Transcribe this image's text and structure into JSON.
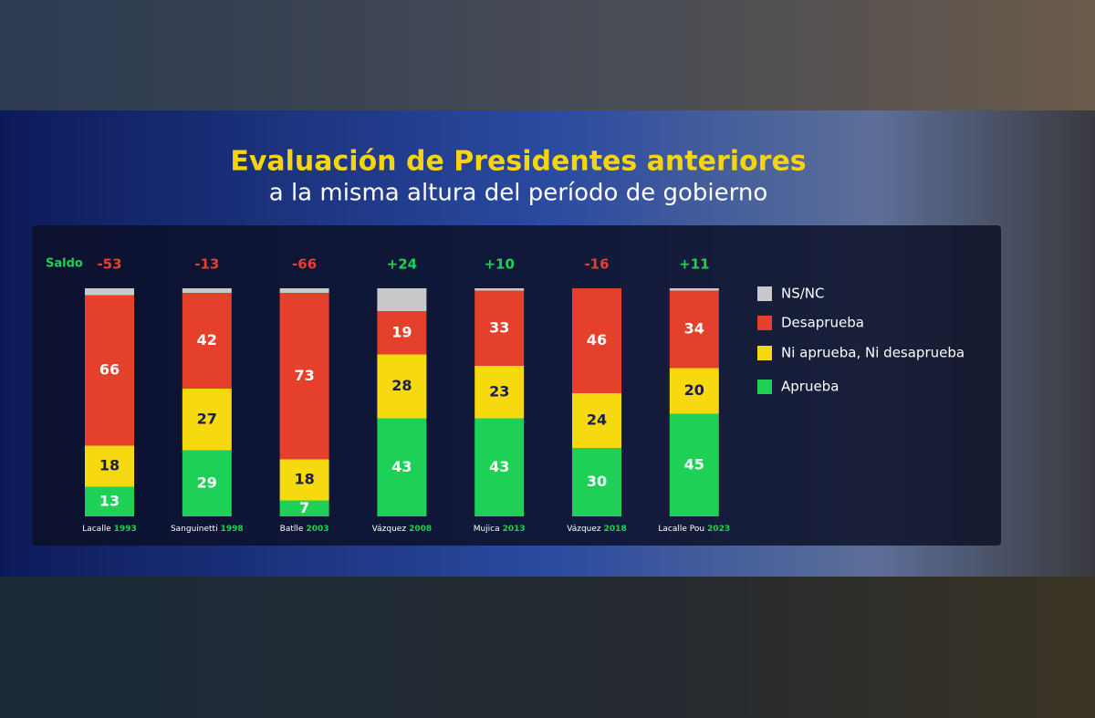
{
  "chart_data": {
    "type": "stacked_bar",
    "title": "Evaluación de Presidentes anteriores",
    "subtitle": "a la misma altura del período de gobierno",
    "categories": [
      "Lacalle",
      "Sanguinetti",
      "Batlle",
      "Vázquez",
      "Mujica",
      "Vázquez",
      "Lacalle Pou"
    ],
    "years": [
      "1993",
      "1998",
      "2003",
      "2008",
      "2013",
      "2018",
      "2023"
    ],
    "series": [
      {
        "name": "Aprueba",
        "color": "#1ed156",
        "values": [
          13,
          29,
          7,
          43,
          43,
          30,
          45
        ]
      },
      {
        "name": "Ni aprueba, Ni desaprueba",
        "color": "#f6d90f",
        "values": [
          18,
          27,
          18,
          28,
          23,
          24,
          20
        ]
      },
      {
        "name": "Desaprueba",
        "color": "#e5402b",
        "values": [
          66,
          42,
          73,
          19,
          33,
          46,
          34
        ]
      },
      {
        "name": "NS/NC",
        "color": "#c9c9c9",
        "values": [
          3,
          2,
          2,
          10,
          1,
          0,
          1
        ]
      }
    ],
    "saldo": {
      "label": "Saldo",
      "values": [
        -53,
        -13,
        -66,
        24,
        10,
        -16,
        11
      ],
      "value_labels": [
        "-53",
        "-13",
        "-66",
        "+24",
        "+10",
        "-16",
        "+11"
      ]
    }
  }
}
